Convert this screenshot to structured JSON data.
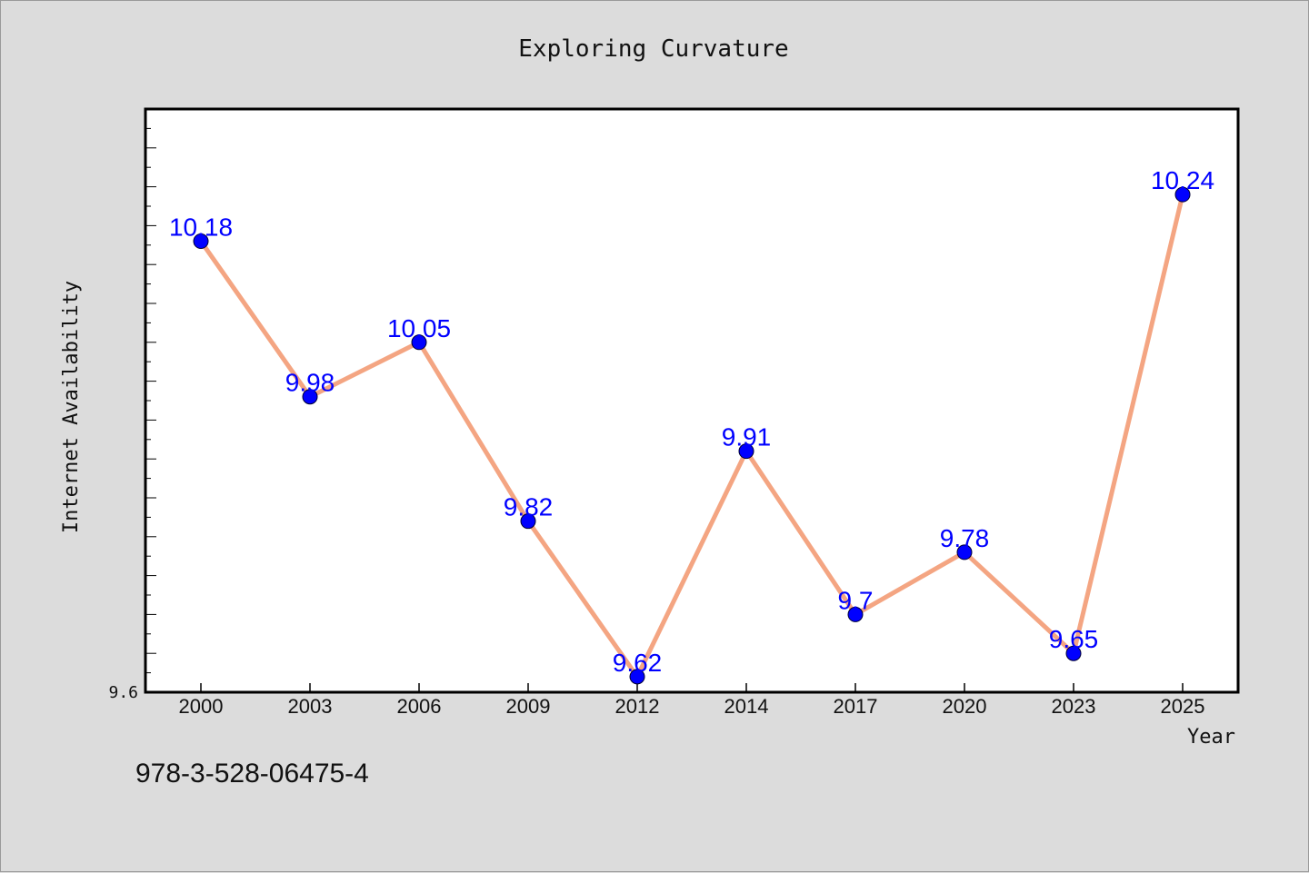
{
  "colors": {
    "background": "#dcdcdc",
    "plot_bg": "#ffffff",
    "line": "#f4a582",
    "marker": "#0000ff",
    "label": "#0000ff"
  },
  "footer": {
    "isbn": "978-3-528-06475-4"
  },
  "chart_data": {
    "type": "line",
    "title": "Exploring Curvature",
    "xlabel": "Year",
    "ylabel": "Internet Availability",
    "categories": [
      "2000",
      "2003",
      "2006",
      "2009",
      "2012",
      "2014",
      "2017",
      "2020",
      "2023",
      "2025"
    ],
    "series": [
      {
        "values": [
          10.18,
          9.98,
          10.05,
          9.82,
          9.62,
          9.91,
          9.7,
          9.78,
          9.65,
          10.24
        ]
      }
    ],
    "data_labels": [
      "10.18",
      "9.98",
      "10.05",
      "9.82",
      "9.62",
      "9.91",
      "9.7",
      "9.78",
      "9.65",
      "10.24"
    ],
    "ylim": [
      9.6,
      10.35
    ],
    "y_tick_labels": [
      "9.6"
    ],
    "grid": false,
    "legend": "none"
  }
}
